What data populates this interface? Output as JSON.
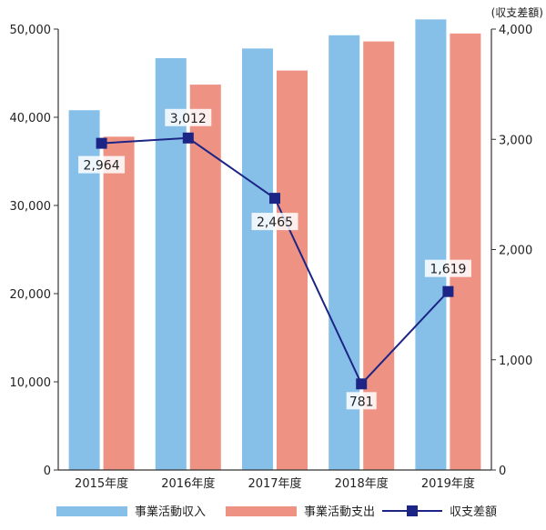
{
  "chart_data": {
    "type": "bar",
    "categories": [
      "2015年度",
      "2016年度",
      "2017年度",
      "2018年度",
      "2019年度"
    ],
    "series": [
      {
        "name": "事業活動収入",
        "type": "bar",
        "axis": "left",
        "color": "#86c0e8",
        "values": [
          40800,
          46700,
          47800,
          49300,
          51100
        ]
      },
      {
        "name": "事業活動支出",
        "type": "bar",
        "axis": "left",
        "color": "#ee9284",
        "values": [
          37800,
          43700,
          45300,
          48600,
          49500
        ]
      },
      {
        "name": "収支差額",
        "type": "line",
        "axis": "right",
        "color": "#1c2585",
        "values": [
          2964,
          3012,
          2465,
          781,
          1619
        ]
      }
    ],
    "data_labels": [
      "2,964",
      "3,012",
      "2,465",
      "781",
      "1,619"
    ],
    "left_axis": {
      "min": 0,
      "max": 50000,
      "ticks": [
        "0",
        "10,000",
        "20,000",
        "30,000",
        "40,000",
        "50,000"
      ]
    },
    "right_axis": {
      "min": 0,
      "max": 4000,
      "ticks": [
        "0",
        "1,000",
        "2,000",
        "3,000",
        "4,000"
      ],
      "unit_label": "(収支差額)"
    },
    "grid": false,
    "legend_position": "bottom"
  }
}
